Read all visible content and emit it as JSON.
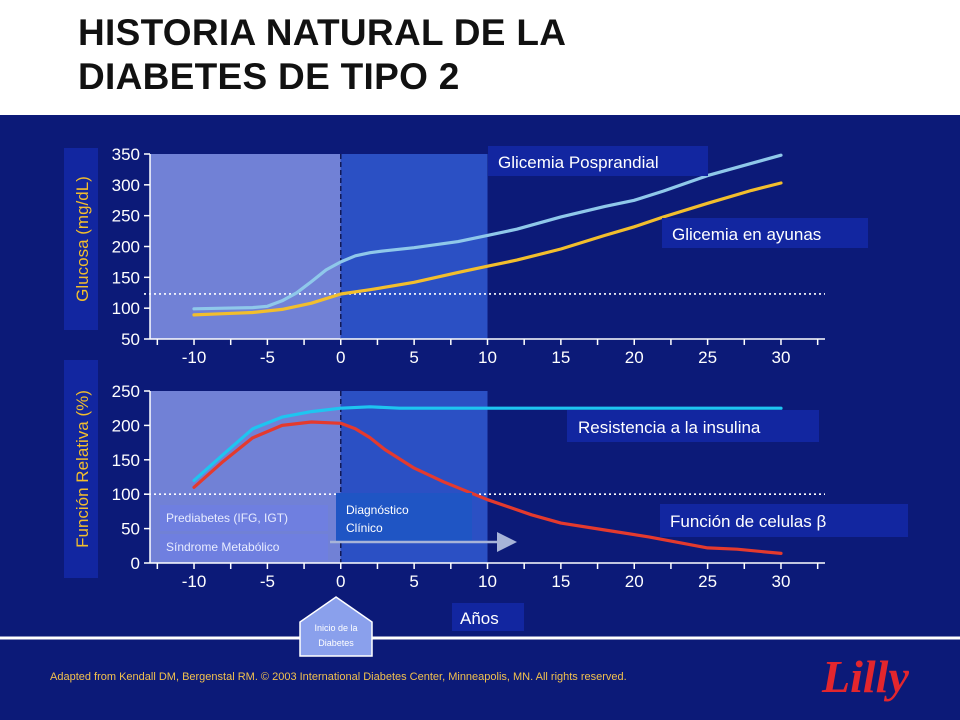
{
  "title": {
    "line1": "HISTORIA NATURAL DE LA",
    "line2": "DIABETES DE TIPO 2"
  },
  "colors": {
    "panel": "#0c1a78",
    "posprandial": "#8fc8ea",
    "ayunas": "#f2be2d",
    "resistencia": "#1ec5f0",
    "beta": "#e43a2e",
    "label_box": "#1226a0"
  },
  "chart_data": [
    {
      "type": "line",
      "ylabel": "Glucosa (mg/dL)",
      "xlabel": "",
      "xlim": [
        -13,
        33
      ],
      "ylim": [
        50,
        350
      ],
      "x_ticks": [
        -10,
        -5,
        0,
        5,
        10,
        15,
        20,
        25,
        30
      ],
      "y_ticks": [
        "50",
        "100",
        "150",
        "200",
        "250",
        "300",
        "350"
      ],
      "reference_y": 123,
      "vertical_marker_x": 0,
      "shaded_range": [
        -13,
        10
      ],
      "grid": false,
      "series": [
        {
          "name": "Glicemia Posprandial",
          "color": "#8fc8ea",
          "x": [
            -10,
            -8,
            -6,
            -5,
            -4,
            -3,
            -2,
            -1,
            0,
            1,
            2,
            3,
            5,
            8,
            10,
            12,
            15,
            18,
            20,
            22,
            25,
            28,
            30
          ],
          "y": [
            99,
            100,
            101,
            103,
            112,
            125,
            143,
            162,
            175,
            185,
            190,
            193,
            198,
            208,
            218,
            228,
            248,
            265,
            275,
            290,
            315,
            335,
            348
          ]
        },
        {
          "name": "Glicemia en ayunas",
          "color": "#f2be2d",
          "x": [
            -10,
            -8,
            -6,
            -4,
            -2,
            0,
            2,
            5,
            8,
            10,
            12,
            15,
            18,
            20,
            22,
            25,
            28,
            30
          ],
          "y": [
            89,
            91,
            93,
            98,
            108,
            123,
            130,
            142,
            158,
            168,
            178,
            196,
            218,
            232,
            248,
            270,
            291,
            303
          ]
        }
      ]
    },
    {
      "type": "line",
      "ylabel": "Función Relativa (%)",
      "xlabel": "Años",
      "xlim": [
        -13,
        33
      ],
      "ylim": [
        0,
        250
      ],
      "x_ticks": [
        -10,
        -5,
        0,
        5,
        10,
        15,
        20,
        25,
        30
      ],
      "y_ticks": [
        "0",
        "50",
        "100",
        "150",
        "200",
        "250"
      ],
      "reference_y": 100,
      "vertical_marker_x": 0,
      "shaded_range": [
        -13,
        10
      ],
      "grid": false,
      "series": [
        {
          "name": "Resistencia a la insulina",
          "color": "#1ec5f0",
          "x": [
            -10,
            -8,
            -6,
            -4,
            -2,
            0,
            2,
            4,
            6,
            10,
            15,
            20,
            25,
            30
          ],
          "y": [
            120,
            158,
            195,
            212,
            220,
            225,
            227,
            225,
            225,
            225,
            225,
            225,
            225,
            225
          ]
        },
        {
          "name": "Función de celulas β",
          "color": "#e43a2e",
          "x": [
            -10,
            -8,
            -6,
            -4,
            -2,
            0,
            1,
            2,
            3,
            5,
            7,
            10,
            13,
            15,
            18,
            21,
            23,
            25,
            27,
            30
          ],
          "y": [
            110,
            148,
            182,
            200,
            205,
            203,
            195,
            182,
            165,
            138,
            118,
            92,
            70,
            58,
            48,
            38,
            30,
            22,
            20,
            14
          ]
        }
      ]
    }
  ],
  "labels": {
    "posprandial": "Glicemia Posprandial",
    "ayunas": "Glicemia en ayunas",
    "resistencia": "Resistencia a la insulina",
    "beta": "Función de celulas β",
    "prediabetes": "Prediabetes (IFG, IGT)",
    "sindrome": "Síndrome Metabólico",
    "diagnostico_line1": "Diagnóstico",
    "diagnostico_line2": "Clínico",
    "anos": "Años",
    "inicio_line1": "Inicio de la",
    "inicio_line2": "Diabetes"
  },
  "footer": {
    "credit": "Adapted from Kendall DM, Bergenstal RM. © 2003 International Diabetes Center, Minneapolis, MN. All rights reserved.",
    "logo": "Lilly"
  }
}
